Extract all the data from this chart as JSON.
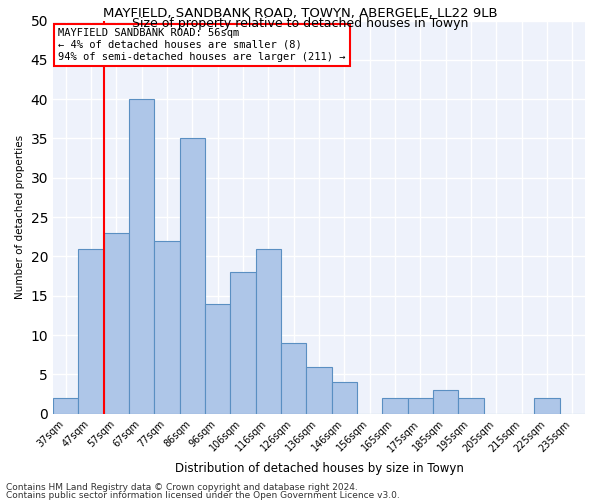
{
  "title1": "MAYFIELD, SANDBANK ROAD, TOWYN, ABERGELE, LL22 9LB",
  "title2": "Size of property relative to detached houses in Towyn",
  "xlabel": "Distribution of detached houses by size in Towyn",
  "ylabel": "Number of detached properties",
  "categories": [
    "37sqm",
    "47sqm",
    "57sqm",
    "67sqm",
    "77sqm",
    "86sqm",
    "96sqm",
    "106sqm",
    "116sqm",
    "126sqm",
    "136sqm",
    "146sqm",
    "156sqm",
    "165sqm",
    "175sqm",
    "185sqm",
    "195sqm",
    "205sqm",
    "215sqm",
    "225sqm",
    "235sqm"
  ],
  "values": [
    2,
    21,
    23,
    40,
    22,
    35,
    14,
    18,
    21,
    9,
    6,
    4,
    0,
    2,
    2,
    3,
    2,
    0,
    0,
    2,
    0
  ],
  "bar_color": "#aec6e8",
  "bar_edge_color": "#5a8fc2",
  "red_line_x": 1.5,
  "annotation_line1": "MAYFIELD SANDBANK ROAD: 56sqm",
  "annotation_line2": "← 4% of detached houses are smaller (8)",
  "annotation_line3": "94% of semi-detached houses are larger (211) →",
  "footer1": "Contains HM Land Registry data © Crown copyright and database right 2024.",
  "footer2": "Contains public sector information licensed under the Open Government Licence v3.0.",
  "ylim": [
    0,
    50
  ],
  "yticks": [
    0,
    5,
    10,
    15,
    20,
    25,
    30,
    35,
    40,
    45,
    50
  ],
  "bg_color": "#eef2fb",
  "grid_color": "#ffffff",
  "title1_fontsize": 9.5,
  "title2_fontsize": 9,
  "xlabel_fontsize": 8.5,
  "ylabel_fontsize": 7.5,
  "tick_fontsize": 7,
  "annot_fontsize": 7.5,
  "footer_fontsize": 6.5
}
